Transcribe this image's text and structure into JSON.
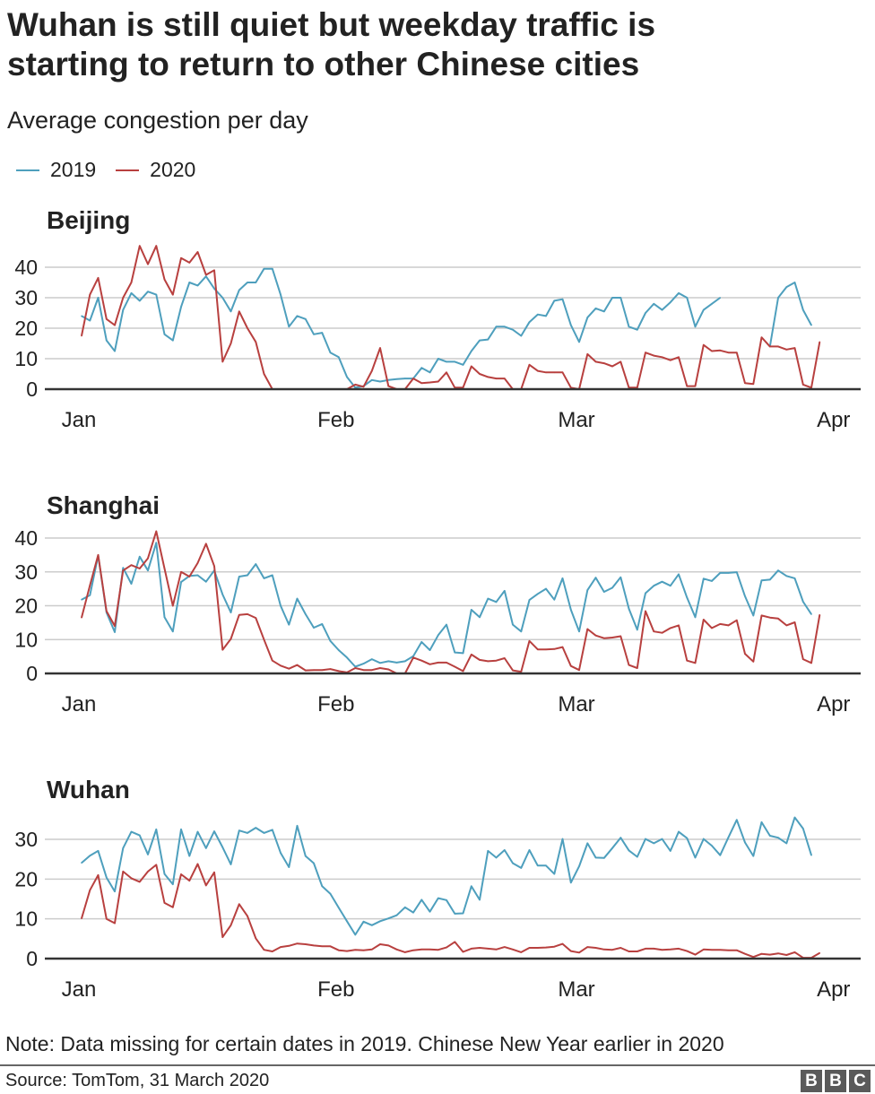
{
  "title_lines": [
    "Wuhan is still quiet but weekday traffic is",
    "starting to return to other Chinese cities"
  ],
  "subtitle": "Average congestion per day",
  "legend": [
    {
      "label": "2019",
      "color": "#4e9fbd"
    },
    {
      "label": "2020",
      "color": "#b8403f"
    }
  ],
  "note": "Note: Data missing for certain dates in 2019. Chinese New Year earlier in 2020",
  "source": "Source: TomTom, 31 March 2020",
  "logo": [
    "B",
    "B",
    "C"
  ],
  "chart_data": [
    {
      "type": "line",
      "title": "Beijing",
      "x_start": "Jan 1",
      "x_unit": "day",
      "x_tick_labels": [
        "Jan",
        "Feb",
        "Mar",
        "Apr"
      ],
      "x_tick_days": [
        0,
        31,
        60,
        91
      ],
      "ylim": [
        0,
        40
      ],
      "y_ticks": [
        0,
        10,
        20,
        30,
        40
      ],
      "grid": true,
      "series": [
        {
          "name": "2019",
          "values": [
            24,
            22.5,
            30,
            16,
            12.5,
            26,
            31.5,
            29,
            32,
            31,
            18,
            16,
            27,
            35,
            34,
            37,
            33,
            30,
            25.5,
            32.5,
            35,
            35,
            39.5,
            39.5,
            31,
            20.5,
            24,
            23,
            18,
            18.5,
            12,
            10.5,
            4,
            0.5,
            1,
            3,
            2.5,
            3,
            3.3,
            3.5,
            3.5,
            7,
            5.5,
            10,
            9,
            9,
            8,
            12.5,
            16,
            16.3,
            20.5,
            20.5,
            19.5,
            17.5,
            22,
            24.5,
            24,
            29,
            29.5,
            21,
            15.5,
            23.5,
            26.5,
            25.5,
            30,
            30,
            20.5,
            19.5,
            25,
            28,
            26,
            28.5,
            31.5,
            30,
            20.5,
            26,
            28,
            30,
            null,
            null,
            null,
            null,
            null,
            14,
            30,
            33.5,
            35,
            26,
            21,
            null
          ]
        },
        {
          "name": "2020",
          "values": [
            17.5,
            31,
            36.5,
            23,
            21,
            30,
            35,
            47,
            41,
            47,
            36,
            31,
            43,
            41.5,
            45,
            37.5,
            39,
            9,
            15,
            25.5,
            20,
            15.5,
            5,
            0,
            0,
            0,
            0,
            0,
            0,
            0,
            0,
            0,
            0,
            1.5,
            0.8,
            6,
            13.5,
            1,
            0,
            0,
            3.5,
            2,
            2.2,
            2.5,
            5.5,
            0.5,
            0.5,
            7.5,
            5,
            4,
            3.5,
            3.5,
            0,
            0,
            8,
            6,
            5.5,
            5.5,
            5.5,
            0.5,
            0,
            11.5,
            9,
            8.5,
            7.5,
            9,
            0.5,
            0.5,
            12,
            11,
            10.5,
            9.5,
            10.5,
            1,
            1,
            14.5,
            12.5,
            12.7,
            12,
            12,
            2,
            1.7,
            17,
            14,
            14,
            13,
            13.5,
            1.5,
            0.5,
            15.5
          ]
        }
      ]
    },
    {
      "type": "line",
      "title": "Shanghai",
      "x_start": "Jan 1",
      "x_unit": "day",
      "x_tick_labels": [
        "Jan",
        "Feb",
        "Mar",
        "Apr"
      ],
      "x_tick_days": [
        0,
        31,
        60,
        91
      ],
      "ylim": [
        0,
        40
      ],
      "y_ticks": [
        0,
        10,
        20,
        30,
        40
      ],
      "grid": true,
      "series": [
        {
          "name": "2019",
          "values": [
            21.8,
            23.1,
            34.8,
            18,
            12.2,
            31.2,
            26.5,
            34.5,
            30.4,
            38.6,
            16.6,
            12.4,
            27,
            28.8,
            29,
            27.1,
            30.4,
            23.3,
            18,
            28.6,
            29,
            32.3,
            28.1,
            29,
            20,
            14.4,
            22.1,
            17.5,
            13.5,
            14.6,
            9.6,
            6.9,
            4.7,
            2,
            2.9,
            4.2,
            3.1,
            3.6,
            3.2,
            3.6,
            5.1,
            9.3,
            6.9,
            11.3,
            14.4,
            6.2,
            6,
            18.8,
            16.6,
            22.1,
            21.1,
            24.4,
            14.4,
            12.4,
            21.7,
            23.5,
            25,
            21.8,
            28.1,
            18.8,
            12.4,
            24.6,
            28.3,
            24.1,
            25.3,
            28.4,
            19.1,
            12.9,
            23.7,
            25.9,
            27.1,
            25.9,
            29.3,
            22.4,
            16.6,
            28,
            27.3,
            29.7,
            29.7,
            29.9,
            22.8,
            17.1,
            27.5,
            27.7,
            30.4,
            28.8,
            28.1,
            21.2,
            17.5,
            null
          ]
        },
        {
          "name": "2020",
          "values": [
            16.5,
            26,
            35,
            18.4,
            14,
            30.4,
            32,
            31,
            34,
            42,
            31,
            20,
            30,
            28.6,
            32.6,
            38.3,
            31.7,
            7,
            10.2,
            17.3,
            17.5,
            16.4,
            10,
            3.8,
            2.3,
            1.4,
            2.5,
            0.9,
            1,
            1,
            1.3,
            0.7,
            0.3,
            1.6,
            1,
            1,
            1.6,
            1.2,
            0,
            0,
            4.7,
            3.8,
            2.7,
            3.2,
            3.2,
            2,
            0.7,
            5.6,
            4,
            3.6,
            3.8,
            4.5,
            0.9,
            0.5,
            9.6,
            7.1,
            7.1,
            7.2,
            7.8,
            2.2,
            1,
            13.1,
            11.2,
            10.4,
            10.6,
            11,
            2.5,
            1.6,
            18.4,
            12.4,
            12,
            13.4,
            14.2,
            3.8,
            3.1,
            15.9,
            13.4,
            14.6,
            14.2,
            15.7,
            5.8,
            3.5,
            17.1,
            16.5,
            16.2,
            14.2,
            15.1,
            4.2,
            3.1,
            17.3
          ]
        }
      ]
    },
    {
      "type": "line",
      "title": "Wuhan",
      "x_start": "Jan 1",
      "x_unit": "day",
      "x_tick_labels": [
        "Jan",
        "Feb",
        "Mar",
        "Apr"
      ],
      "x_tick_days": [
        0,
        31,
        60,
        91
      ],
      "ylim": [
        0,
        30
      ],
      "y_ticks": [
        0,
        10,
        20,
        30
      ],
      "grid": true,
      "series": [
        {
          "name": "2019",
          "values": [
            24.1,
            25.9,
            27.1,
            20.4,
            16.9,
            27.8,
            31.9,
            31,
            26.2,
            32.5,
            21.3,
            18.7,
            32.5,
            25.8,
            31.9,
            27.8,
            32,
            28,
            23.7,
            32.2,
            31.6,
            32.9,
            31.6,
            32.4,
            26.6,
            23,
            33.4,
            25.8,
            24,
            18.2,
            16.3,
            12.8,
            9.4,
            6,
            9.3,
            8.4,
            9.4,
            10.1,
            10.9,
            12.9,
            11.6,
            14.8,
            11.8,
            15.2,
            14.7,
            11.3,
            11.4,
            18.2,
            14.8,
            27.1,
            25.4,
            27.3,
            24,
            22.8,
            27.3,
            23.4,
            23.4,
            21.3,
            30.1,
            19.1,
            23.2,
            29,
            25.4,
            25.3,
            27.8,
            30.4,
            27.2,
            25.6,
            30.1,
            29,
            30.1,
            27.1,
            31.9,
            30.3,
            25.4,
            30.1,
            28.4,
            26,
            30.5,
            34.9,
            29.2,
            25.8,
            34.3,
            30.9,
            30.4,
            29,
            35.5,
            32.7,
            26,
            null
          ]
        },
        {
          "name": "2020",
          "values": [
            10.1,
            17.2,
            21,
            10,
            8.9,
            21.9,
            20.2,
            19.3,
            21.9,
            23.6,
            14,
            12.9,
            21.2,
            19.6,
            23.8,
            18.4,
            21.7,
            5.4,
            8.4,
            13.7,
            10.7,
            5.1,
            2.2,
            1.8,
            2.9,
            3.2,
            3.8,
            3.6,
            3.3,
            3.1,
            3.1,
            2.1,
            1.9,
            2.2,
            2.1,
            2.3,
            3.6,
            3.3,
            2.3,
            1.6,
            2.1,
            2.3,
            2.3,
            2.2,
            2.8,
            4.2,
            1.7,
            2.5,
            2.7,
            2.5,
            2.3,
            2.9,
            2.3,
            1.6,
            2.7,
            2.7,
            2.8,
            3,
            3.7,
            1.9,
            1.5,
            2.9,
            2.7,
            2.3,
            2.2,
            2.7,
            1.8,
            1.8,
            2.5,
            2.5,
            2.2,
            2.3,
            2.5,
            1.9,
            1,
            2.3,
            2.2,
            2.2,
            2.1,
            2.1,
            1.2,
            0.4,
            1.2,
            1,
            1.3,
            0.9,
            1.6,
            0.2,
            0.2,
            1.4
          ]
        }
      ]
    }
  ]
}
